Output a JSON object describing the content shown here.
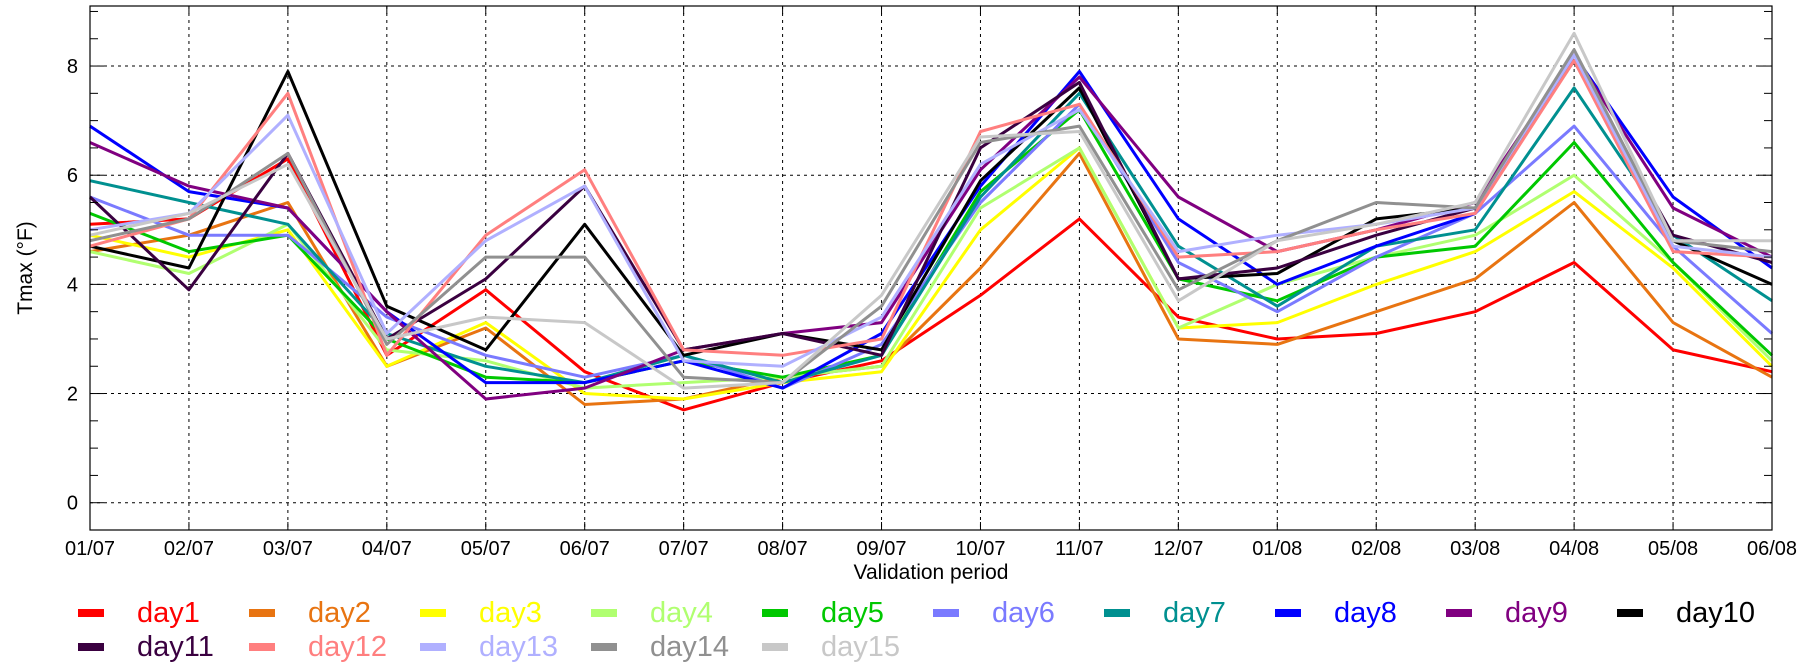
{
  "chart_data": {
    "type": "line",
    "xlabel": "Validation period",
    "ylabel": "Tmax (°F)",
    "x": [
      "01/07",
      "02/07",
      "03/07",
      "04/07",
      "05/07",
      "06/07",
      "07/07",
      "08/07",
      "09/07",
      "10/07",
      "11/07",
      "12/07",
      "01/08",
      "02/08",
      "03/08",
      "04/08",
      "05/08",
      "06/08"
    ],
    "ylim": [
      -0.5,
      9.1
    ],
    "yticks": [
      0,
      2,
      4,
      6,
      8
    ],
    "grid": true,
    "legend_position": "bottom",
    "series": [
      {
        "name": "day1",
        "color": "#ff0000",
        "values": [
          5.1,
          5.2,
          6.3,
          2.7,
          3.9,
          2.4,
          1.7,
          2.2,
          2.6,
          3.8,
          5.2,
          3.4,
          3.0,
          3.1,
          3.5,
          4.4,
          2.8,
          2.4
        ]
      },
      {
        "name": "day2",
        "color": "#e87411",
        "values": [
          4.6,
          4.9,
          5.5,
          2.5,
          3.2,
          1.8,
          1.9,
          2.3,
          2.5,
          4.3,
          6.4,
          3.0,
          2.9,
          3.5,
          4.1,
          5.5,
          3.3,
          2.3
        ]
      },
      {
        "name": "day3",
        "color": "#ffff00",
        "values": [
          4.9,
          4.5,
          5.0,
          2.5,
          3.3,
          2.0,
          1.9,
          2.2,
          2.4,
          5.0,
          6.5,
          3.2,
          3.3,
          4.0,
          4.6,
          5.7,
          4.3,
          2.5
        ]
      },
      {
        "name": "day4",
        "color": "#b0ff70",
        "values": [
          4.6,
          4.2,
          5.1,
          2.8,
          2.6,
          2.1,
          2.2,
          2.3,
          2.5,
          5.4,
          6.5,
          3.2,
          4.0,
          4.5,
          4.9,
          6.0,
          4.4,
          2.6
        ]
      },
      {
        "name": "day5",
        "color": "#00c800",
        "values": [
          5.3,
          4.6,
          4.9,
          3.0,
          2.3,
          2.2,
          2.6,
          2.3,
          2.7,
          5.7,
          7.2,
          4.1,
          3.7,
          4.5,
          4.7,
          6.6,
          4.4,
          2.7
        ]
      },
      {
        "name": "day6",
        "color": "#7a7aff",
        "values": [
          5.6,
          4.9,
          4.9,
          3.4,
          2.7,
          2.3,
          2.7,
          2.1,
          2.9,
          5.5,
          7.3,
          4.4,
          3.5,
          4.5,
          5.3,
          6.9,
          4.7,
          3.1
        ]
      },
      {
        "name": "day7",
        "color": "#009090",
        "values": [
          5.9,
          5.5,
          5.1,
          3.1,
          2.5,
          2.2,
          2.7,
          2.2,
          2.7,
          5.6,
          7.5,
          4.7,
          3.6,
          4.7,
          5.0,
          7.6,
          4.9,
          3.7
        ]
      },
      {
        "name": "day8",
        "color": "#0000ff",
        "values": [
          6.9,
          5.7,
          5.4,
          3.5,
          2.2,
          2.2,
          2.6,
          2.1,
          3.1,
          5.8,
          7.9,
          5.2,
          4.0,
          4.7,
          5.3,
          8.2,
          5.6,
          4.3
        ]
      },
      {
        "name": "day9",
        "color": "#800080",
        "values": [
          6.6,
          5.8,
          5.4,
          3.5,
          1.9,
          2.1,
          2.8,
          3.1,
          3.3,
          6.1,
          7.8,
          5.6,
          4.6,
          5.0,
          5.5,
          8.2,
          5.4,
          4.5
        ]
      },
      {
        "name": "day10",
        "color": "#000000",
        "values": [
          4.7,
          4.3,
          7.9,
          3.6,
          2.8,
          5.1,
          2.7,
          3.1,
          2.8,
          5.9,
          7.6,
          4.1,
          4.2,
          5.2,
          5.4,
          8.1,
          4.8,
          4.0
        ]
      },
      {
        "name": "day11",
        "color": "#3a0040",
        "values": [
          5.6,
          3.9,
          6.4,
          3.0,
          4.1,
          5.8,
          2.8,
          3.1,
          2.7,
          6.5,
          7.7,
          4.1,
          4.3,
          4.9,
          5.4,
          8.1,
          4.9,
          4.4
        ]
      },
      {
        "name": "day12",
        "color": "#ff7f7f",
        "values": [
          4.7,
          5.2,
          7.5,
          2.7,
          4.9,
          6.1,
          2.8,
          2.7,
          3.0,
          6.8,
          7.3,
          4.5,
          4.6,
          5.0,
          5.3,
          8.1,
          4.6,
          4.5
        ]
      },
      {
        "name": "day13",
        "color": "#b0b0ff",
        "values": [
          5.0,
          5.3,
          7.1,
          3.1,
          4.8,
          5.8,
          2.6,
          2.5,
          3.4,
          6.2,
          7.2,
          4.6,
          4.9,
          5.1,
          5.4,
          8.2,
          4.7,
          4.5
        ]
      },
      {
        "name": "day14",
        "color": "#909090",
        "values": [
          4.8,
          5.2,
          6.4,
          2.9,
          4.5,
          4.5,
          2.3,
          2.2,
          3.6,
          6.6,
          6.9,
          3.9,
          4.8,
          5.5,
          5.4,
          8.3,
          4.8,
          4.6
        ]
      },
      {
        "name": "day15",
        "color": "#c8c8c8",
        "values": [
          4.9,
          5.3,
          6.2,
          3.0,
          3.4,
          3.3,
          2.1,
          2.2,
          3.8,
          6.7,
          6.8,
          3.7,
          4.8,
          5.1,
          5.5,
          8.6,
          4.8,
          4.8
        ]
      }
    ]
  }
}
